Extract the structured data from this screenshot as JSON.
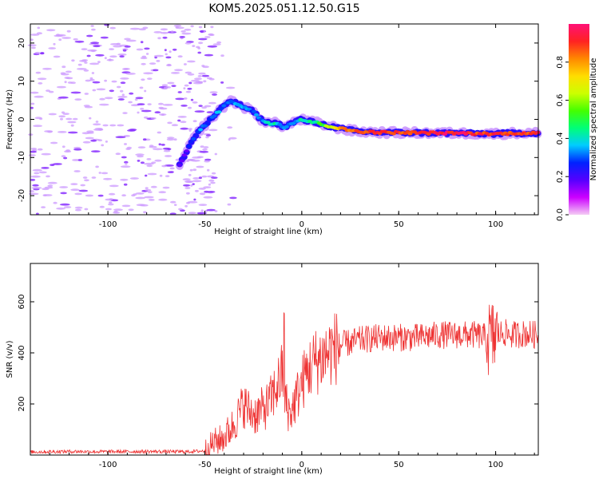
{
  "figure": {
    "title": "KOM5.2025.051.12.50.G15"
  },
  "chart_data": [
    {
      "type": "heatmap",
      "title": "",
      "xlabel": "Height of straight line (km)",
      "ylabel": "Frequency (Hz)",
      "xlim": [
        -140,
        122
      ],
      "ylim": [
        -25,
        25
      ],
      "xticks": [
        -100,
        -50,
        0,
        50,
        100
      ],
      "yticks": [
        -20,
        -10,
        0,
        10,
        20
      ],
      "ridge_frequency": {
        "x": [
          -63,
          -57,
          -53,
          -49,
          -45,
          -41,
          -37,
          -33,
          -29,
          -25,
          -21,
          -17,
          -13,
          -9,
          -5,
          -1,
          3,
          7,
          12,
          18,
          24,
          30,
          40,
          50,
          60,
          70,
          80,
          90,
          100,
          110,
          122
        ],
        "y": [
          -12,
          -6,
          -3,
          -1,
          1,
          3,
          5,
          4,
          3,
          2,
          0,
          -1,
          -1,
          -2,
          -1,
          0,
          -0.5,
          -0.8,
          -1.5,
          -2.2,
          -2.8,
          -3.2,
          -3.4,
          -3.5,
          -3.5,
          -3.6,
          -3.6,
          -3.7,
          -3.8,
          -3.6,
          -3.6
        ]
      },
      "ridge_amplitude": [
        0.15,
        0.25,
        0.3,
        0.3,
        0.35,
        0.3,
        0.35,
        0.35,
        0.3,
        0.3,
        0.35,
        0.4,
        0.4,
        0.35,
        0.35,
        0.4,
        0.45,
        0.45,
        0.55,
        0.75,
        0.85,
        0.9,
        0.9,
        0.9,
        0.9,
        0.95,
        0.95,
        0.9,
        0.9,
        0.9,
        0.9
      ],
      "colorbar": {
        "label": "Normalized spectral amplitude",
        "range": [
          0.0,
          1.0
        ],
        "ticks": [
          0.0,
          0.2,
          0.4,
          0.6,
          0.8
        ],
        "tick_labels": [
          "0.0",
          "0.2",
          "0.4",
          "0.6",
          "0.8"
        ],
        "colormap": [
          "#f4ccf4",
          "#cc00ff",
          "#5500ff",
          "#0022ff",
          "#00ccff",
          "#00ff77",
          "#44ff00",
          "#ccff00",
          "#ffdd00",
          "#ff8800",
          "#ff2222",
          "#ff1177"
        ]
      },
      "noise_color": "#cc99ff"
    },
    {
      "type": "line",
      "title": "",
      "xlabel": "Height of straight line (km)",
      "ylabel": "SNR (v/v)",
      "xlim": [
        -140,
        122
      ],
      "ylim": [
        0,
        750
      ],
      "xticks": [
        -100,
        -50,
        0,
        50,
        100
      ],
      "yticks": [
        200,
        400,
        600
      ],
      "line_color": "#ee3333",
      "series": [
        {
          "x": [
            -140,
            -120,
            -100,
            -80,
            -60,
            -50,
            -45,
            -42,
            -40,
            -36,
            -33,
            -30,
            -27,
            -24,
            -20,
            -17,
            -14,
            -11,
            -10,
            -8,
            -6,
            -3,
            0,
            3,
            6,
            10,
            15,
            20,
            25,
            30,
            40,
            50,
            60,
            70,
            80,
            90,
            95,
            98,
            100,
            104,
            108,
            115,
            122
          ],
          "y": [
            12,
            14,
            13,
            14,
            13,
            16,
            50,
            60,
            70,
            110,
            150,
            200,
            170,
            160,
            180,
            200,
            250,
            300,
            330,
            200,
            160,
            220,
            280,
            330,
            360,
            380,
            410,
            430,
            440,
            450,
            460,
            460,
            460,
            470,
            470,
            470,
            460,
            450,
            470,
            480,
            470,
            475,
            470
          ]
        }
      ]
    }
  ]
}
